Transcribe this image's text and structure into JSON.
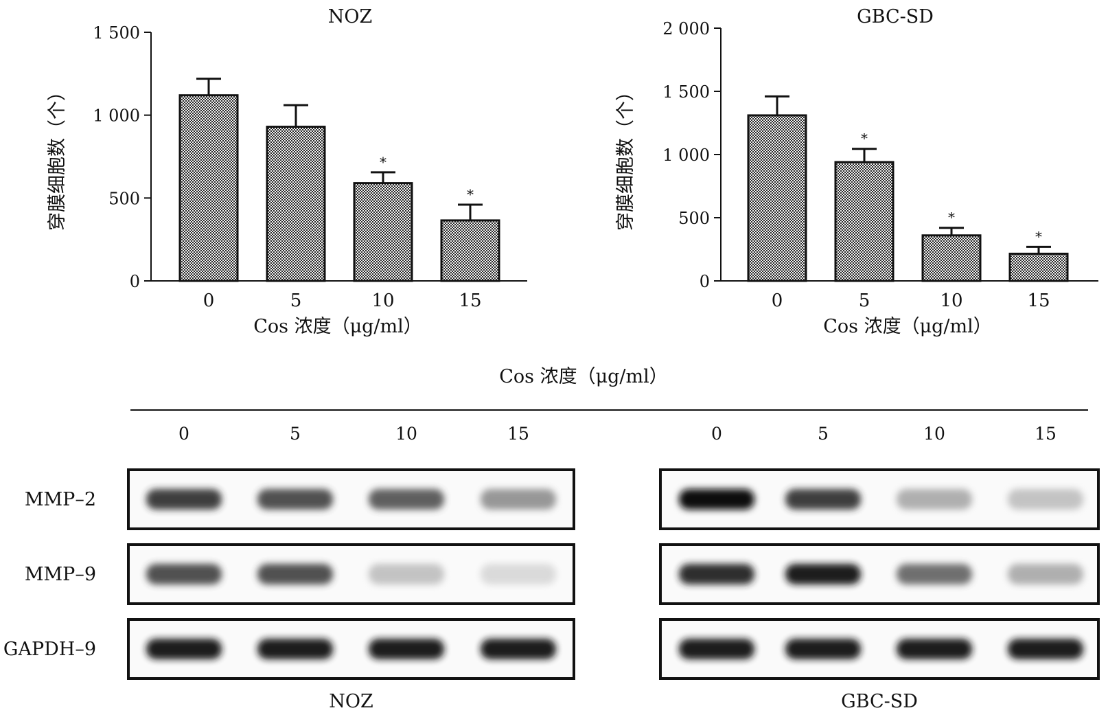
{
  "chart_data": [
    {
      "type": "bar",
      "title": "NOZ",
      "xlabel": "Cos 浓度（μg/ml）",
      "ylabel": "穿膜细胞数（个）",
      "categories": [
        "0",
        "5",
        "10",
        "15"
      ],
      "values": [
        1120,
        930,
        590,
        365
      ],
      "error": [
        100,
        130,
        65,
        95
      ],
      "significance": [
        "",
        "",
        "*",
        "*"
      ],
      "yticks": [
        "0",
        "500",
        "1 000",
        "1 500"
      ],
      "ylim": [
        0,
        1500
      ],
      "grid": false
    },
    {
      "type": "bar",
      "title": "GBC-SD",
      "xlabel": "Cos 浓度（μg/ml）",
      "ylabel": "穿膜细胞数（个）",
      "categories": [
        "0",
        "5",
        "10",
        "15"
      ],
      "values": [
        1310,
        940,
        360,
        215
      ],
      "error": [
        150,
        105,
        60,
        55
      ],
      "significance": [
        "",
        "*",
        "*",
        "*"
      ],
      "yticks": [
        "0",
        "500",
        "1 000",
        "1 500",
        "2 000"
      ],
      "ylim": [
        0,
        2000
      ],
      "grid": false
    }
  ],
  "western_blot": {
    "header": "Cos 浓度（μg/ml）",
    "lanes": [
      "0",
      "5",
      "10",
      "15"
    ],
    "rows": [
      "MMP–2",
      "MMP–9",
      "GAPDH–9"
    ],
    "panels": [
      {
        "name": "NOZ",
        "intensity": [
          [
            0.85,
            0.8,
            0.75,
            0.55
          ],
          [
            0.8,
            0.8,
            0.35,
            0.22
          ],
          [
            0.95,
            0.95,
            0.95,
            0.95
          ]
        ]
      },
      {
        "name": "GBC-SD",
        "intensity": [
          [
            1.0,
            0.85,
            0.45,
            0.35
          ],
          [
            0.9,
            0.95,
            0.7,
            0.45
          ],
          [
            0.95,
            0.95,
            0.95,
            0.95
          ]
        ]
      }
    ]
  }
}
